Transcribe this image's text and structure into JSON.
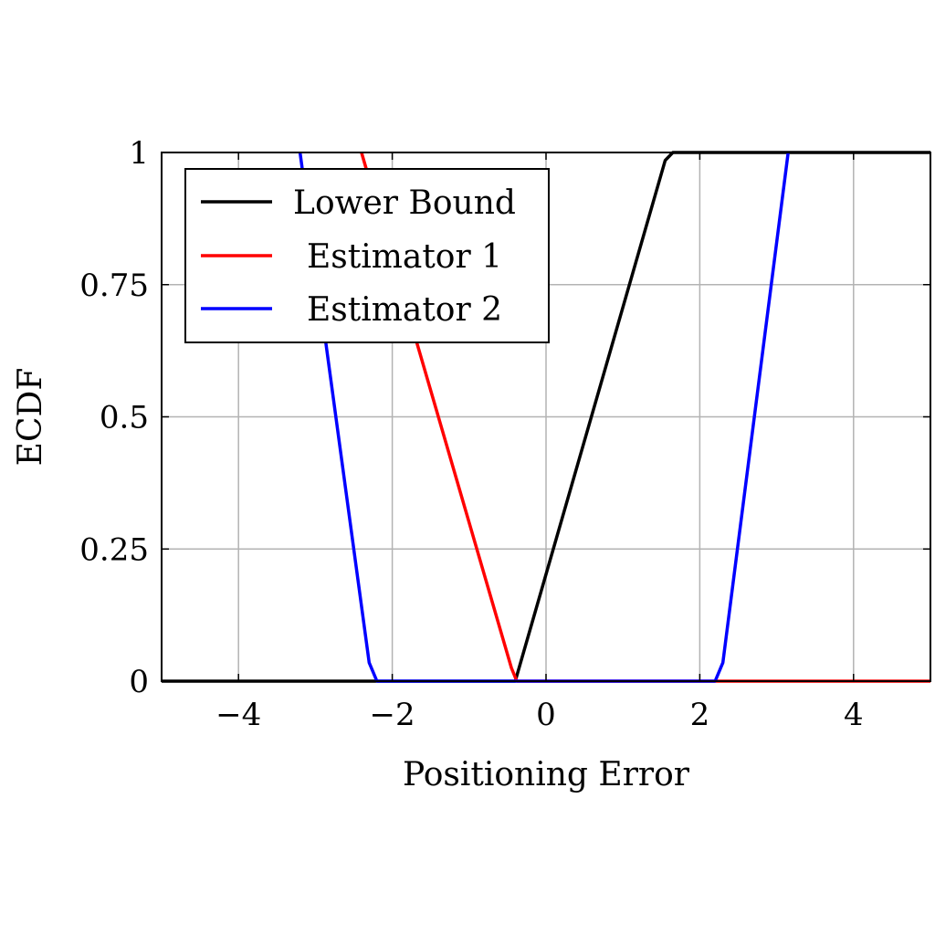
{
  "chart_data": {
    "type": "line",
    "xlabel": "Positioning Error",
    "ylabel": "ECDF",
    "xlim": [
      -5,
      5
    ],
    "ylim": [
      0,
      1
    ],
    "x_ticks": [
      -4,
      -2,
      0,
      2,
      4
    ],
    "x_tick_labels": [
      "−4",
      "−2",
      "0",
      "2",
      "4"
    ],
    "y_ticks": [
      0,
      0.25,
      0.5,
      0.75,
      1
    ],
    "y_tick_labels": [
      "0",
      "0.25",
      "0.5",
      "0.75",
      "1"
    ],
    "grid": true,
    "legend_position": "top-left",
    "series": [
      {
        "name": "Lower Bound",
        "color": "#000000",
        "x": [
          -5,
          -0.4,
          1.55,
          1.65,
          5
        ],
        "y": [
          0,
          0,
          0.985,
          1,
          1
        ]
      },
      {
        "name": "Estimator 1",
        "color": "#ff0000",
        "x": [
          -2.4,
          -0.45,
          -0.38,
          5
        ],
        "y": [
          1,
          0.025,
          0,
          0
        ]
      },
      {
        "name": "Estimator 2",
        "color": "#0000ff",
        "x": [
          -3.2,
          -2.3,
          -2.2,
          2.2,
          2.3,
          3.15
        ],
        "y": [
          1,
          0.035,
          0,
          0,
          0.035,
          1
        ]
      }
    ]
  }
}
